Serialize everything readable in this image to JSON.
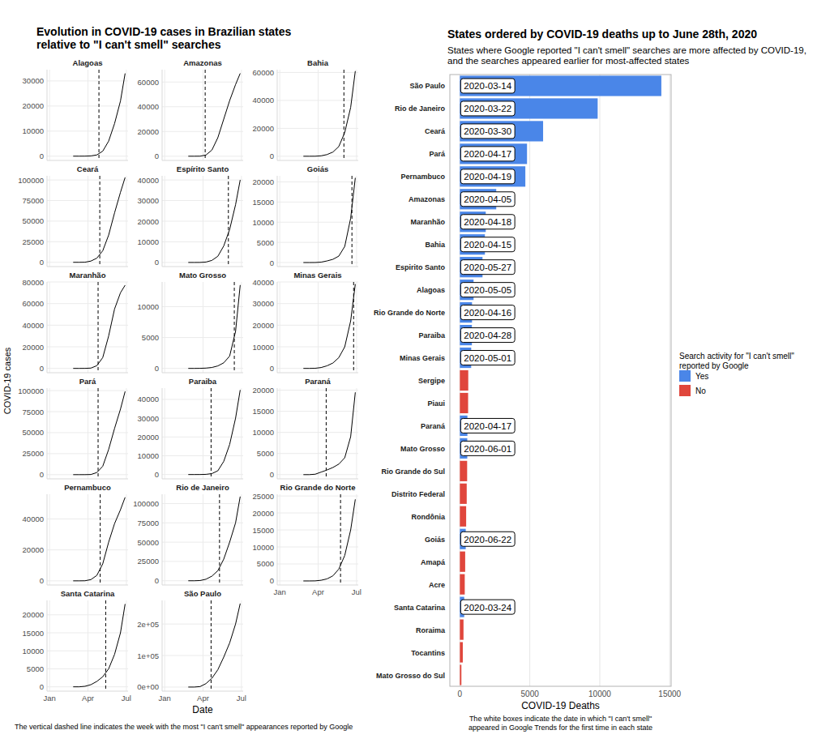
{
  "left_panel": {
    "title": "Evolution in COVID-19 cases in Brazilian states\nrelative to \"I can't smell\" searches",
    "x_label": "Date",
    "y_label": "COVID-19 cases",
    "note": "The vertical dashed line indicates the week with the most \"I can't smell\" appearances reported by Google"
  },
  "chart_data": [
    {
      "type": "line",
      "title": "Alagoas",
      "x": [
        57,
        71,
        85,
        99,
        113,
        127,
        141,
        155,
        169,
        180
      ],
      "values": [
        0,
        0,
        10,
        100,
        500,
        2000,
        6000,
        13000,
        22000,
        33000
      ],
      "color": "#000000",
      "peak_search_week": 118,
      "xlim": [
        -5,
        187
      ],
      "xticks": [
        1,
        92,
        183
      ],
      "ylim": [
        -1700,
        34500
      ],
      "yticks": [
        0,
        10000,
        20000,
        30000
      ],
      "grid": true,
      "tick_labels": "y"
    },
    {
      "type": "line",
      "title": "Amazonas",
      "x": [
        57,
        71,
        85,
        99,
        113,
        127,
        141,
        155,
        169,
        180
      ],
      "values": [
        0,
        0,
        50,
        1000,
        5000,
        15000,
        30000,
        45000,
        58000,
        67000
      ],
      "color": "#000000",
      "peak_search_week": 97,
      "xlim": [
        -5,
        187
      ],
      "xticks": [
        1,
        92,
        183
      ],
      "ylim": [
        -3400,
        70000
      ],
      "yticks": [
        0,
        20000,
        40000,
        60000
      ],
      "grid": true,
      "tick_labels": "y"
    },
    {
      "type": "line",
      "title": "Bahia",
      "x": [
        57,
        71,
        85,
        99,
        113,
        127,
        141,
        155,
        169,
        180
      ],
      "values": [
        0,
        0,
        20,
        300,
        1200,
        3000,
        7000,
        17000,
        35000,
        61000
      ],
      "color": "#000000",
      "peak_search_week": 153,
      "xlim": [
        -5,
        187
      ],
      "xticks": [
        1,
        92,
        183
      ],
      "ylim": [
        -3000,
        62000
      ],
      "yticks": [
        0,
        20000,
        40000,
        60000
      ],
      "grid": true,
      "tick_labels": "y"
    },
    {
      "type": "line",
      "title": "Ceará",
      "x": [
        57,
        71,
        85,
        99,
        113,
        127,
        141,
        155,
        169,
        180
      ],
      "values": [
        0,
        0,
        100,
        1500,
        5000,
        14000,
        33000,
        60000,
        85000,
        103000
      ],
      "color": "#000000",
      "peak_search_week": 120,
      "xlim": [
        -5,
        187
      ],
      "xticks": [
        1,
        92,
        183
      ],
      "ylim": [
        -5200,
        105000
      ],
      "yticks": [
        0,
        25000,
        50000,
        75000,
        100000
      ],
      "grid": true,
      "tick_labels": "y"
    },
    {
      "type": "line",
      "title": "Espírito Santo",
      "x": [
        57,
        71,
        85,
        99,
        113,
        127,
        141,
        155,
        169,
        180
      ],
      "values": [
        0,
        0,
        20,
        200,
        1000,
        3000,
        8000,
        16000,
        28000,
        40000
      ],
      "color": "#000000",
      "peak_search_week": 152,
      "xlim": [
        -5,
        187
      ],
      "xticks": [
        1,
        92,
        183
      ],
      "ylim": [
        -2000,
        42000
      ],
      "yticks": [
        0,
        10000,
        20000,
        30000,
        40000
      ],
      "grid": true,
      "tick_labels": "y"
    },
    {
      "type": "line",
      "title": "Goiás",
      "x": [
        57,
        71,
        85,
        99,
        113,
        127,
        141,
        155,
        169,
        180
      ],
      "values": [
        0,
        0,
        10,
        100,
        400,
        800,
        1600,
        4000,
        11000,
        21000
      ],
      "color": "#000000",
      "peak_search_week": 172,
      "xlim": [
        -5,
        187
      ],
      "xticks": [
        1,
        92,
        183
      ],
      "ylim": [
        -1000,
        21500
      ],
      "yticks": [
        0,
        5000,
        10000,
        15000,
        20000
      ],
      "grid": true,
      "tick_labels": "y"
    },
    {
      "type": "line",
      "title": "Maranhão",
      "x": [
        57,
        71,
        85,
        99,
        113,
        127,
        141,
        155,
        169,
        180
      ],
      "values": [
        0,
        0,
        20,
        300,
        2500,
        10000,
        30000,
        55000,
        70000,
        77000
      ],
      "color": "#000000",
      "peak_search_week": 116,
      "xlim": [
        -5,
        187
      ],
      "xticks": [
        1,
        92,
        183
      ],
      "ylim": [
        -4000,
        80000
      ],
      "yticks": [
        0,
        20000,
        40000,
        60000,
        80000
      ],
      "grid": true,
      "tick_labels": "y"
    },
    {
      "type": "line",
      "title": "Mato Grosso",
      "x": [
        57,
        71,
        85,
        99,
        113,
        127,
        141,
        155,
        169,
        180
      ],
      "values": [
        0,
        0,
        10,
        50,
        150,
        400,
        900,
        2000,
        6000,
        13500
      ],
      "color": "#000000",
      "peak_search_week": 166,
      "xlim": [
        -5,
        187
      ],
      "xticks": [
        1,
        92,
        183
      ],
      "ylim": [
        -700,
        14000
      ],
      "yticks": [
        0,
        5000,
        10000
      ],
      "grid": true,
      "tick_labels": "y"
    },
    {
      "type": "line",
      "title": "Minas Gerais",
      "x": [
        57,
        71,
        85,
        99,
        113,
        127,
        141,
        155,
        169,
        180
      ],
      "values": [
        0,
        0,
        50,
        400,
        1200,
        2500,
        5000,
        10000,
        22000,
        39000
      ],
      "color": "#000000",
      "peak_search_week": 176,
      "xlim": [
        -5,
        187
      ],
      "xticks": [
        1,
        92,
        183
      ],
      "ylim": [
        -2000,
        40000
      ],
      "yticks": [
        0,
        10000,
        20000,
        30000,
        40000
      ],
      "grid": true,
      "tick_labels": "y"
    },
    {
      "type": "line",
      "title": "Pará",
      "x": [
        57,
        71,
        85,
        99,
        113,
        127,
        141,
        155,
        169,
        180
      ],
      "values": [
        0,
        0,
        20,
        200,
        2500,
        10000,
        30000,
        55000,
        78000,
        99000
      ],
      "color": "#000000",
      "peak_search_week": 116,
      "xlim": [
        -5,
        187
      ],
      "xticks": [
        1,
        92,
        183
      ],
      "ylim": [
        -5000,
        103000
      ],
      "yticks": [
        0,
        25000,
        50000,
        75000,
        100000
      ],
      "grid": true,
      "tick_labels": "y"
    },
    {
      "type": "line",
      "title": "Paraiba",
      "x": [
        57,
        71,
        85,
        99,
        113,
        127,
        141,
        155,
        169,
        180
      ],
      "values": [
        0,
        0,
        10,
        100,
        500,
        2000,
        7000,
        16000,
        30000,
        45000
      ],
      "color": "#000000",
      "peak_search_week": 111,
      "xlim": [
        -5,
        187
      ],
      "xticks": [
        1,
        92,
        183
      ],
      "ylim": [
        -2300,
        46000
      ],
      "yticks": [
        0,
        10000,
        20000,
        30000,
        40000
      ],
      "grid": true,
      "tick_labels": "y"
    },
    {
      "type": "line",
      "title": "Paraná",
      "x": [
        57,
        71,
        85,
        99,
        113,
        127,
        141,
        155,
        169,
        180
      ],
      "values": [
        0,
        0,
        100,
        600,
        1100,
        1700,
        2500,
        4000,
        9000,
        19500
      ],
      "color": "#000000",
      "peak_search_week": 111,
      "xlim": [
        -5,
        187
      ],
      "xticks": [
        1,
        92,
        183
      ],
      "ylim": [
        -1000,
        20500
      ],
      "yticks": [
        0,
        5000,
        10000,
        15000,
        20000
      ],
      "grid": true,
      "tick_labels": "y"
    },
    {
      "type": "line",
      "title": "Pernambuco",
      "x": [
        57,
        71,
        85,
        99,
        113,
        127,
        141,
        155,
        169,
        180
      ],
      "values": [
        0,
        0,
        50,
        800,
        3500,
        11000,
        25000,
        37000,
        46000,
        54000
      ],
      "color": "#000000",
      "peak_search_week": 121,
      "xlim": [
        -5,
        187
      ],
      "xticks": [
        1,
        92,
        183
      ],
      "ylim": [
        -2700,
        56000
      ],
      "yticks": [
        0,
        20000,
        40000
      ],
      "grid": true,
      "tick_labels": "y"
    },
    {
      "type": "line",
      "title": "Rio de Janeiro",
      "x": [
        57,
        71,
        85,
        99,
        113,
        127,
        141,
        155,
        169,
        180
      ],
      "values": [
        0,
        0,
        300,
        2000,
        6000,
        13000,
        28000,
        50000,
        75000,
        109000
      ],
      "color": "#000000",
      "peak_search_week": 131,
      "xlim": [
        -5,
        187
      ],
      "xticks": [
        1,
        92,
        183
      ],
      "ylim": [
        -5500,
        112000
      ],
      "yticks": [
        0,
        25000,
        50000,
        75000,
        100000
      ],
      "grid": true,
      "tick_labels": "y"
    },
    {
      "type": "line",
      "title": "Rio Grande do Norte",
      "x": [
        57,
        71,
        85,
        99,
        113,
        127,
        141,
        155,
        169,
        180
      ],
      "values": [
        0,
        0,
        20,
        200,
        600,
        1500,
        3500,
        7500,
        15000,
        24000
      ],
      "color": "#000000",
      "peak_search_week": 145,
      "xlim": [
        -5,
        187
      ],
      "xticks": [
        {
          "value": 1,
          "label": "Jan"
        },
        {
          "value": 92,
          "label": "Apr"
        },
        {
          "value": 183,
          "label": "Jul"
        }
      ],
      "ylim": [
        -1200,
        25500
      ],
      "yticks": [
        0,
        5000,
        10000,
        15000,
        20000,
        25000
      ],
      "grid": true
    },
    {
      "type": "line",
      "title": "Santa Catarina",
      "x": [
        57,
        71,
        85,
        99,
        113,
        127,
        141,
        155,
        169,
        180
      ],
      "values": [
        0,
        0,
        150,
        600,
        1500,
        2800,
        5000,
        9000,
        15000,
        23000
      ],
      "color": "#000000",
      "peak_search_week": 134,
      "xlim": [
        -5,
        187
      ],
      "xticks": [
        {
          "value": 1,
          "label": "Jan"
        },
        {
          "value": 92,
          "label": "Apr"
        },
        {
          "value": 183,
          "label": "Jul"
        }
      ],
      "ylim": [
        -1200,
        24000
      ],
      "yticks": [
        0,
        5000,
        10000,
        15000,
        20000
      ],
      "grid": true
    },
    {
      "type": "line",
      "title": "São Paulo",
      "x": [
        57,
        71,
        85,
        99,
        113,
        127,
        141,
        155,
        169,
        180
      ],
      "values": [
        0,
        0,
        1500,
        11000,
        28000,
        55000,
        95000,
        140000,
        200000,
        265000
      ],
      "color": "#000000",
      "peak_search_week": 111,
      "xlim": [
        -5,
        187
      ],
      "xticks": [
        {
          "value": 1,
          "label": "Jan"
        },
        {
          "value": 92,
          "label": "Apr"
        },
        {
          "value": 183,
          "label": "Jul"
        }
      ],
      "ylim": [
        -13000,
        275000
      ],
      "yticks": [
        {
          "value": 0,
          "label": "0e+00"
        },
        {
          "value": 100000,
          "label": "1e+05"
        },
        {
          "value": 200000,
          "label": "2e+05"
        }
      ],
      "grid": true
    },
    {
      "type": "bar",
      "orientation": "horizontal",
      "title": "States ordered by COVID-19 deaths up to June 28th, 2020",
      "subtitle": "States where Google reported \"I can't smell\" searches are more affected by COVID-19,\nand the searches appeared earlier for most-affected states",
      "x_label": "COVID-19 Deaths",
      "note": "The white boxes indicate the date in which \"I can't smell\"\nappeared in Google Trends for the first time in each state",
      "legend_title": "Search activity for \"I can't smell\"\nreported by Google",
      "legend": "right",
      "categories": [
        "São Paulo",
        "Rio de Janeiro",
        "Ceará",
        "Pará",
        "Pernambuco",
        "Amazonas",
        "Maranhão",
        "Bahia",
        "Espirito Santo",
        "Alagoas",
        "Rio Grande do Norte",
        "Paraiba",
        "Minas Gerais",
        "Sergipe",
        "Piaui",
        "Paraná",
        "Mato Grosso",
        "Rio Grande do Sul",
        "Distrito Federal",
        "Rondônia",
        "Goiás",
        "Amapá",
        "Acre",
        "Santa Catarina",
        "Roraima",
        "Tocantins",
        "Mato Grosso do Sul"
      ],
      "series": [
        {
          "name": "Yes",
          "color": "#4a86e8",
          "values": [
            14400,
            9850,
            5950,
            4800,
            4680,
            2600,
            1850,
            1790,
            1620,
            980,
            870,
            860,
            810,
            null,
            null,
            540,
            530,
            null,
            null,
            null,
            420,
            null,
            null,
            310,
            null,
            null,
            null
          ]
        },
        {
          "name": "No",
          "color": "#e0463c",
          "values": [
            null,
            null,
            null,
            null,
            null,
            null,
            null,
            null,
            null,
            null,
            null,
            null,
            null,
            600,
            590,
            null,
            null,
            520,
            490,
            450,
            null,
            380,
            350,
            null,
            260,
            210,
            110
          ]
        }
      ],
      "annotations": [
        "2020-03-14",
        "2020-03-22",
        "2020-03-30",
        "2020-04-17",
        "2020-04-19",
        "2020-04-05",
        "2020-04-18",
        "2020-04-15",
        "2020-05-27",
        "2020-05-05",
        "2020-04-16",
        "2020-04-28",
        "2020-05-01",
        null,
        null,
        "2020-04-17",
        "2020-06-01",
        null,
        null,
        null,
        "2020-06-22",
        null,
        null,
        "2020-03-24",
        null,
        null,
        null
      ],
      "xlim": [
        -715,
        15100
      ],
      "xticks": [
        0,
        5000,
        10000,
        15000
      ],
      "grid": true
    }
  ]
}
